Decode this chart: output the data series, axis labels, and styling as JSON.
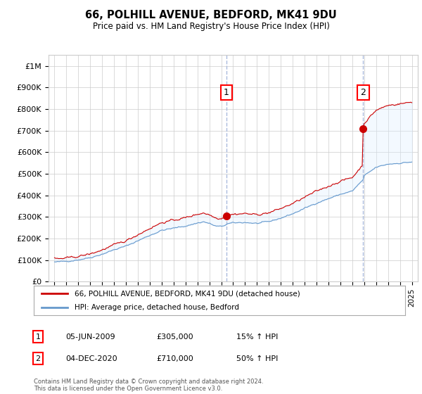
{
  "title": "66, POLHILL AVENUE, BEDFORD, MK41 9DU",
  "subtitle": "Price paid vs. HM Land Registry's House Price Index (HPI)",
  "ylabel_ticks": [
    "£0",
    "£100K",
    "£200K",
    "£300K",
    "£400K",
    "£500K",
    "£600K",
    "£700K",
    "£800K",
    "£900K",
    "£1M"
  ],
  "ytick_values": [
    0,
    100000,
    200000,
    300000,
    400000,
    500000,
    600000,
    700000,
    800000,
    900000,
    1000000
  ],
  "xlim": [
    1994.5,
    2025.5
  ],
  "ylim": [
    0,
    1050000
  ],
  "sale1_x": 2009.43,
  "sale1_y": 305000,
  "sale2_x": 2020.92,
  "sale2_y": 710000,
  "legend_label_red": "66, POLHILL AVENUE, BEDFORD, MK41 9DU (detached house)",
  "legend_label_blue": "HPI: Average price, detached house, Bedford",
  "table_rows": [
    {
      "num": "1",
      "date": "05-JUN-2009",
      "price": "£305,000",
      "hpi": "15% ↑ HPI"
    },
    {
      "num": "2",
      "date": "04-DEC-2020",
      "price": "£710,000",
      "hpi": "50% ↑ HPI"
    }
  ],
  "footer": "Contains HM Land Registry data © Crown copyright and database right 2024.\nThis data is licensed under the Open Government Licence v3.0.",
  "bg_color": "#e8f0f8",
  "plot_bg": "#ffffff",
  "red_color": "#cc0000",
  "blue_color": "#6699cc",
  "fill_color": "#ddeeff",
  "vline_color": "#aabbdd"
}
